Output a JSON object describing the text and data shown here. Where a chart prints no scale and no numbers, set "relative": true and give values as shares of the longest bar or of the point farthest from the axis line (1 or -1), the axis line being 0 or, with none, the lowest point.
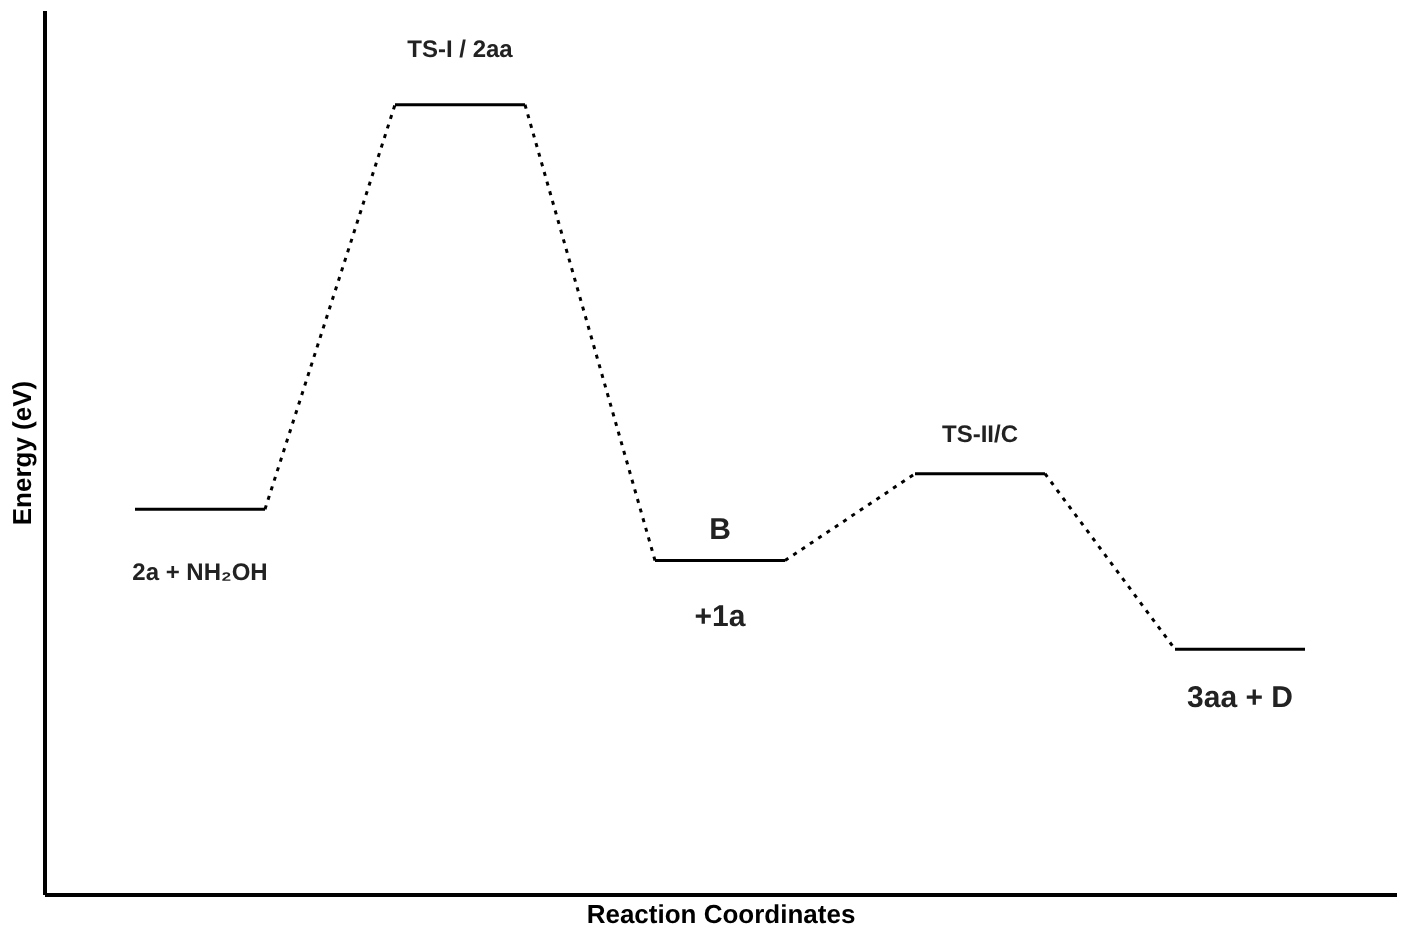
{
  "chart_data": {
    "type": "line",
    "relative": true,
    "xlabel": "Reaction Coordinates",
    "ylabel": "Energy (eV)",
    "tick_labels": false,
    "grid": false,
    "categories": [
      null,
      null,
      null,
      null,
      null,
      null,
      null,
      null,
      null,
      null
    ],
    "series": [
      {
        "color": "#000000",
        "line_style": "solid",
        "values": [
          0.4875,
          0.4875,
          null,
          null,
          null,
          null,
          null,
          null,
          null,
          null
        ]
      },
      {
        "color": "#000000",
        "line_style": "dotted",
        "values": [
          null,
          0.4875,
          1,
          null,
          null,
          null,
          null,
          null,
          null,
          null
        ]
      },
      {
        "color": "#000000",
        "line_style": "solid",
        "values": [
          null,
          null,
          1,
          1,
          null,
          null,
          null,
          null,
          null,
          null
        ]
      },
      {
        "color": "#000000",
        "line_style": "dotted",
        "values": [
          null,
          null,
          null,
          1,
          0.4225,
          null,
          null,
          null,
          null,
          null
        ]
      },
      {
        "color": "#000000",
        "line_style": "solid",
        "values": [
          null,
          null,
          null,
          null,
          0.4225,
          0.4225,
          null,
          null,
          null,
          null
        ]
      },
      {
        "color": "#000000",
        "line_style": "dotted",
        "values": [
          null,
          null,
          null,
          null,
          null,
          0.4225,
          0.5325,
          null,
          null,
          null
        ]
      },
      {
        "color": "#000000",
        "line_style": "solid",
        "values": [
          null,
          null,
          null,
          null,
          null,
          null,
          0.5325,
          0.5325,
          null,
          null
        ]
      },
      {
        "color": "#000000",
        "line_style": "dotted",
        "values": [
          null,
          null,
          null,
          null,
          null,
          null,
          null,
          0.5325,
          0.31,
          null
        ]
      },
      {
        "color": "#000000",
        "line_style": "solid",
        "values": [
          null,
          null,
          null,
          null,
          null,
          null,
          null,
          null,
          0.31,
          0.31
        ]
      }
    ],
    "annotations": [
      "2a + NH₂OH",
      "TS-I / 2aa",
      "B",
      "+1a",
      "TS-II/C",
      "3aa  + D"
    ]
  }
}
